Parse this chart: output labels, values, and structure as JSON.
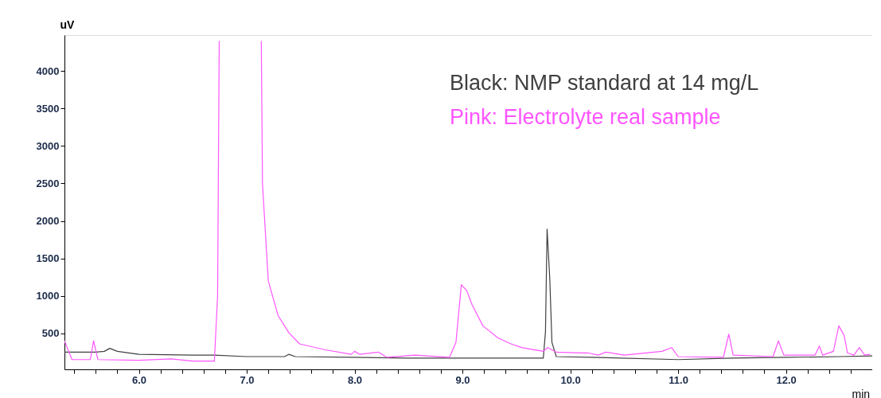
{
  "chart_data": {
    "type": "line",
    "xlabel": "min",
    "ylabel": "uV",
    "xlim": [
      5.31,
      12.8
    ],
    "ylim": [
      20,
      4480
    ],
    "xticks": [
      {
        "value": 5.4,
        "label": null
      },
      {
        "value": 5.6,
        "label": null
      },
      {
        "value": 5.8,
        "label": null
      },
      {
        "value": 6,
        "label": "6.0"
      },
      {
        "value": 6.2,
        "label": null
      },
      {
        "value": 6.4,
        "label": null
      },
      {
        "value": 6.6,
        "label": null
      },
      {
        "value": 6.8,
        "label": null
      },
      {
        "value": 7,
        "label": "7.0"
      },
      {
        "value": 7.2,
        "label": null
      },
      {
        "value": 7.4,
        "label": null
      },
      {
        "value": 7.6,
        "label": null
      },
      {
        "value": 7.8,
        "label": null
      },
      {
        "value": 8,
        "label": "8.0"
      },
      {
        "value": 8.2,
        "label": null
      },
      {
        "value": 8.4,
        "label": null
      },
      {
        "value": 8.6,
        "label": null
      },
      {
        "value": 8.8,
        "label": null
      },
      {
        "value": 9,
        "label": "9.0"
      },
      {
        "value": 9.2,
        "label": null
      },
      {
        "value": 9.4,
        "label": null
      },
      {
        "value": 9.6,
        "label": null
      },
      {
        "value": 9.8,
        "label": null
      },
      {
        "value": 10,
        "label": "10.0"
      },
      {
        "value": 10.2,
        "label": null
      },
      {
        "value": 10.4,
        "label": null
      },
      {
        "value": 10.6,
        "label": null
      },
      {
        "value": 10.8,
        "label": null
      },
      {
        "value": 11,
        "label": "11.0"
      },
      {
        "value": 11.2,
        "label": null
      },
      {
        "value": 11.4,
        "label": null
      },
      {
        "value": 11.6,
        "label": null
      },
      {
        "value": 11.8,
        "label": null
      },
      {
        "value": 12,
        "label": "12.0"
      },
      {
        "value": 12.2,
        "label": null
      },
      {
        "value": 12.4,
        "label": null
      },
      {
        "value": 12.6,
        "label": null
      }
    ],
    "yticks": [
      500,
      1000,
      1500,
      2000,
      2500,
      3000,
      3500,
      4000
    ],
    "grid": false,
    "legend": "top right",
    "marker": "none",
    "line_style": "solid",
    "series": [
      {
        "name": "Black: NMP standard at 14 mg/L",
        "color": "#404040",
        "x": [
          5.31,
          5.6,
          5.68,
          5.73,
          5.8,
          6.0,
          6.5,
          6.7,
          7.0,
          7.35,
          7.39,
          7.45,
          8.0,
          8.5,
          9.0,
          9.5,
          9.75,
          9.77,
          9.785,
          9.81,
          9.83,
          9.87,
          10.2,
          11.0,
          11.5,
          12.0,
          12.5,
          12.8
        ],
        "values": [
          250,
          250,
          260,
          300,
          260,
          220,
          210,
          210,
          190,
          190,
          220,
          190,
          180,
          170,
          170,
          170,
          170,
          520,
          1890,
          1230,
          380,
          190,
          180,
          150,
          170,
          180,
          190,
          200
        ]
      },
      {
        "name": "Pink: Electrolyte real sample",
        "color": "#ff55ff",
        "x": [
          5.31,
          5.38,
          5.55,
          5.58,
          5.62,
          6.0,
          6.3,
          6.5,
          6.7,
          6.73,
          6.745,
          6.75,
          7.13,
          7.135,
          7.146,
          7.2,
          7.29,
          7.39,
          7.49,
          7.73,
          7.97,
          8.0,
          8.05,
          8.22,
          8.3,
          8.56,
          8.88,
          8.94,
          8.99,
          9.04,
          9.09,
          9.19,
          9.33,
          9.45,
          9.55,
          9.75,
          9.79,
          9.87,
          10.11,
          10.16,
          10.26,
          10.33,
          10.5,
          10.85,
          10.94,
          11.0,
          11.42,
          11.47,
          11.51,
          11.88,
          11.93,
          11.98,
          12.27,
          12.31,
          12.34,
          12.44,
          12.49,
          12.54,
          12.57,
          12.63,
          12.68,
          12.73,
          12.78
        ],
        "values": [
          400,
          150,
          150,
          400,
          150,
          140,
          160,
          130,
          130,
          1000,
          4400,
          null,
          null,
          4400,
          2500,
          1200,
          740,
          510,
          360,
          280,
          220,
          260,
          220,
          250,
          180,
          210,
          180,
          380,
          1150,
          1070,
          880,
          600,
          440,
          360,
          310,
          260,
          310,
          250,
          240,
          240,
          210,
          250,
          210,
          260,
          310,
          190,
          180,
          490,
          210,
          190,
          400,
          210,
          210,
          330,
          210,
          260,
          600,
          470,
          240,
          210,
          310,
          210,
          220
        ]
      }
    ]
  }
}
